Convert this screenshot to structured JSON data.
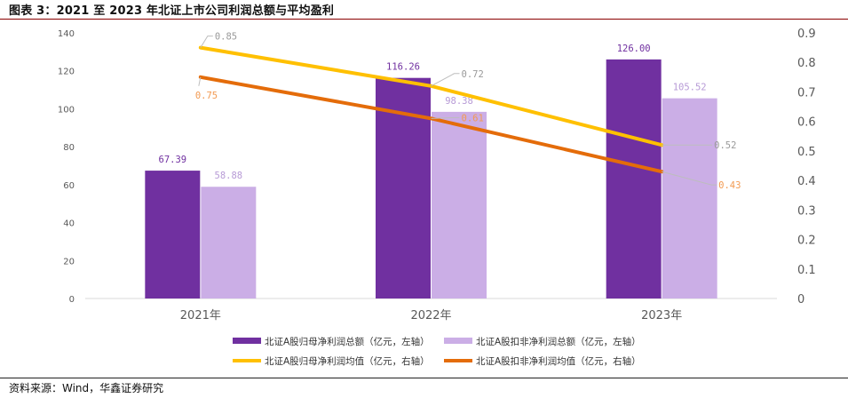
{
  "header": {
    "title": "图表 3：2021 至 2023 年北证上市公司利润总额与平均盈利"
  },
  "footer": {
    "source": "资料来源：Wind，华鑫证券研究"
  },
  "chart_data": {
    "type": "bar",
    "categories": [
      "2021年",
      "2022年",
      "2023年"
    ],
    "y_left": {
      "min": 0,
      "max": 140,
      "ticks": [
        0,
        20,
        40,
        60,
        80,
        100,
        120,
        140
      ]
    },
    "y_right": {
      "min": 0,
      "max": 0.9,
      "ticks": [
        0,
        0.1,
        0.2,
        0.3,
        0.4,
        0.5,
        0.6,
        0.7,
        0.8,
        0.9
      ]
    },
    "grid": false,
    "legend_position": "bottom",
    "series": [
      {
        "name": "北证A股归母净利润总额（亿元，左轴）",
        "type": "bar",
        "axis": "left",
        "color": "#7030a0",
        "values": [
          67.39,
          116.26,
          126.0
        ],
        "labels": [
          "67.39",
          "116.26",
          "126.00"
        ]
      },
      {
        "name": "北证A股扣非净利润总额（亿元，左轴）",
        "type": "bar",
        "axis": "left",
        "color": "#cbaee6",
        "values": [
          58.88,
          98.38,
          105.52
        ],
        "labels": [
          "58.88",
          "98.38",
          "105.52"
        ]
      },
      {
        "name": "北证A股归母净利润均值（亿元，右轴）",
        "type": "line",
        "axis": "right",
        "color": "#ffc000",
        "values": [
          0.85,
          0.72,
          0.52
        ],
        "labels": [
          "0.85",
          "0.72",
          "0.52"
        ]
      },
      {
        "name": "北证A股扣非净利润均值（亿元，右轴）",
        "type": "line",
        "axis": "right",
        "color": "#e46c0a",
        "values": [
          0.75,
          0.61,
          0.43
        ],
        "labels": [
          "0.75",
          "0.61",
          "0.43"
        ]
      }
    ]
  }
}
